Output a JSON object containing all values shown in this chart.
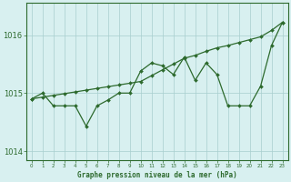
{
  "hours": [
    0,
    1,
    2,
    3,
    4,
    5,
    6,
    7,
    8,
    9,
    10,
    11,
    12,
    13,
    14,
    15,
    16,
    17,
    18,
    19,
    20,
    21,
    22,
    23
  ],
  "jagged_line": [
    1014.9,
    1015.0,
    1014.78,
    1014.78,
    1014.78,
    1014.43,
    1014.78,
    1014.88,
    1015.0,
    1015.0,
    1015.38,
    1015.52,
    1015.47,
    1015.32,
    1015.62,
    1015.22,
    1015.52,
    1015.32,
    1014.78,
    1014.78,
    1014.78,
    1015.12,
    1015.82,
    1016.22
  ],
  "smooth_line": [
    1014.9,
    1014.93,
    1014.96,
    1014.99,
    1015.02,
    1015.05,
    1015.08,
    1015.11,
    1015.14,
    1015.17,
    1015.2,
    1015.3,
    1015.4,
    1015.5,
    1015.6,
    1015.65,
    1015.72,
    1015.78,
    1015.82,
    1015.87,
    1015.92,
    1015.97,
    1016.08,
    1016.22
  ],
  "line_color": "#2d6a2d",
  "bg_color": "#d8f0f0",
  "grid_color": "#a8cece",
  "ylabel_ticks": [
    1014,
    1015,
    1016
  ],
  "ylim": [
    1013.85,
    1016.55
  ],
  "xlim": [
    -0.5,
    23.5
  ],
  "xlabel": "Graphe pression niveau de la mer (hPa)",
  "markersize": 2.0,
  "linewidth": 0.9
}
